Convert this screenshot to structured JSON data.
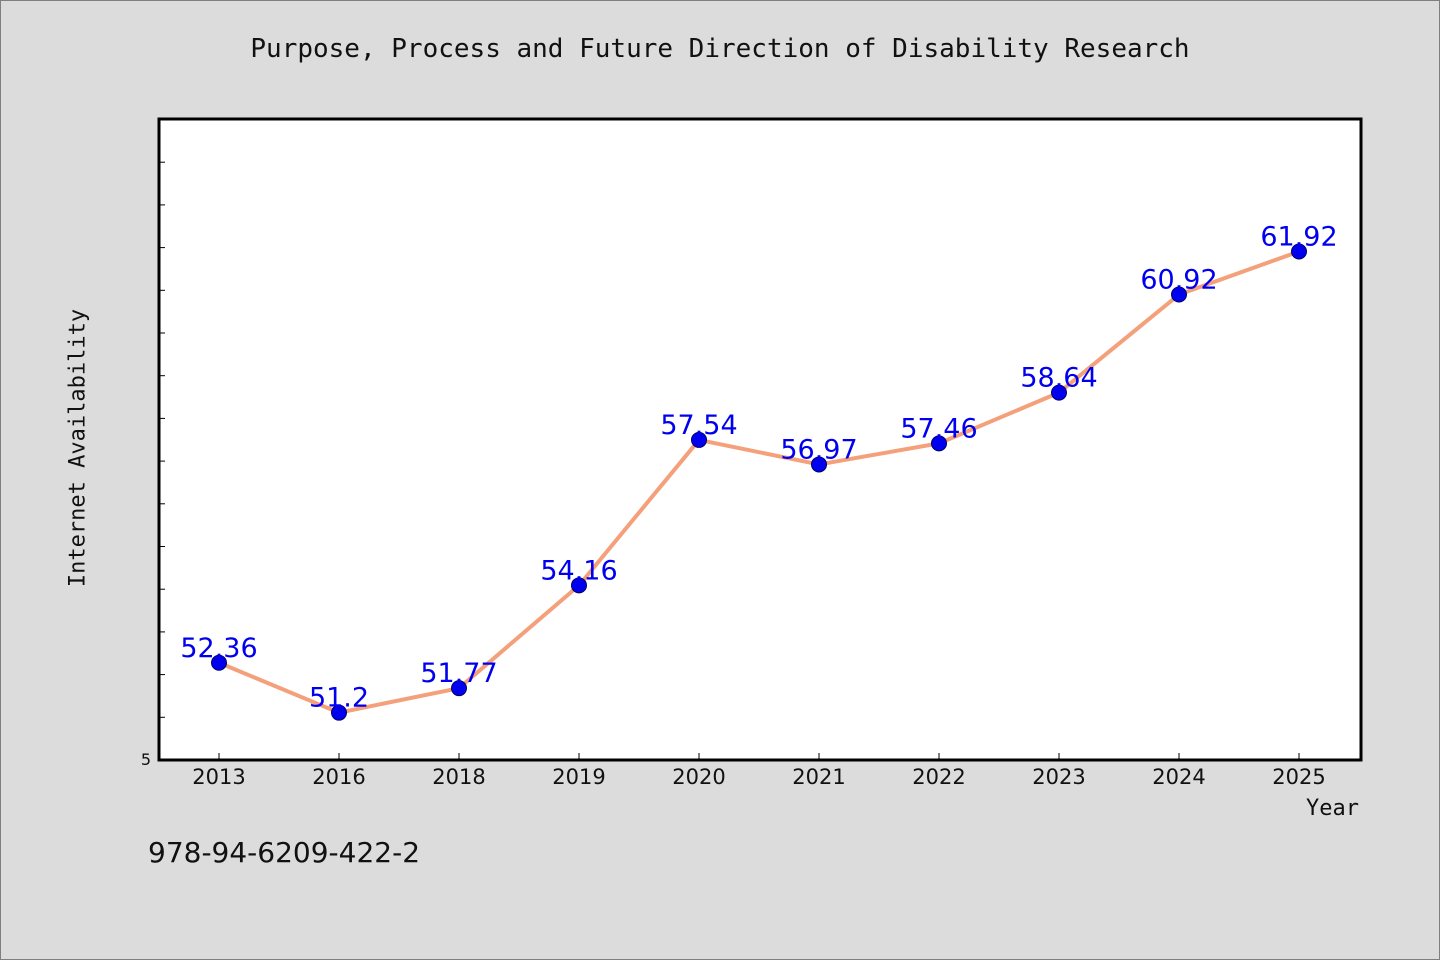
{
  "chart_data": {
    "type": "line",
    "title": "Purpose, Process and Future Direction of Disability Research",
    "xlabel": "Year",
    "ylabel": "Internet Availability",
    "categories": [
      "2013",
      "2016",
      "2018",
      "2019",
      "2020",
      "2021",
      "2022",
      "2023",
      "2024",
      "2025"
    ],
    "series": [
      {
        "values": [
          52.36,
          51.2,
          51.77,
          54.16,
          57.54,
          56.97,
          57.46,
          58.64,
          60.92,
          61.92
        ]
      }
    ],
    "ytick_labels": [
      "5"
    ],
    "ylim": [
      50.1,
      65.0
    ],
    "grid": false,
    "line_color": "#f4a07a",
    "marker_color": "#0000ee",
    "label_color": "#0000ee"
  },
  "footer": {
    "isbn": "978-94-6209-422-2"
  }
}
